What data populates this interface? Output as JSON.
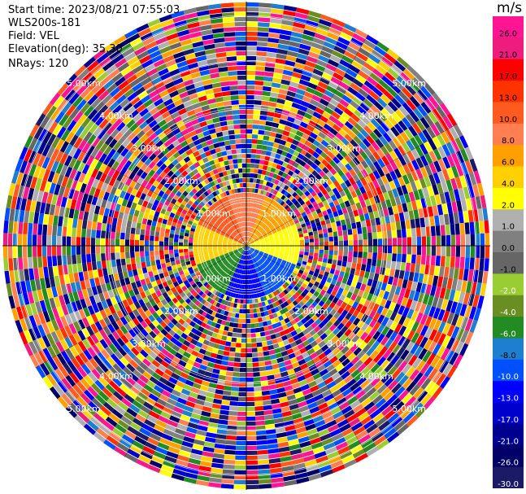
{
  "header": {
    "start_time": "Start time: 2023/08/21 07:55:03",
    "instrument": "WLS200s-181",
    "field": "Field: VEL",
    "elevation": "Elevation(deg): 35.30",
    "nrays": "NRays: 120"
  },
  "colorbar": {
    "unit": "m/s",
    "ticks": [
      "26.0",
      "21.0",
      "17.0",
      "13.0",
      "10.0",
      "8.0",
      "6.0",
      "4.0",
      "2.0",
      "1.0",
      "0.0",
      "-1.0",
      "-2.0",
      "-4.0",
      "-6.0",
      "-8.0",
      "-10.0",
      "-13.0",
      "-17.0",
      "-21.0",
      "-26.0",
      "-30.0"
    ],
    "colors": [
      "#ff1493",
      "#ee1c7c",
      "#ff0000",
      "#ff3300",
      "#ff5a1f",
      "#ff7f50",
      "#ffa000",
      "#ffd000",
      "#ffff00",
      "#b0b0b0",
      "#808080",
      "#666666",
      "#9acd32",
      "#6b8e23",
      "#228b22",
      "#1e7fd0",
      "#0050ff",
      "#0000ff",
      "#0000cd",
      "#000090",
      "#000066",
      "#1a1a66"
    ]
  },
  "range_labels": [
    "1.00km",
    "2.00km",
    "3.00km",
    "4.00km",
    "5.00km"
  ],
  "chart_data": {
    "type": "heatmap",
    "title": "",
    "projection": "polar PPI",
    "field": "VEL",
    "unit": "m/s",
    "nrays": 120,
    "elevation_deg": 35.3,
    "range_rings_km": [
      1,
      2,
      3,
      4,
      5
    ],
    "colorscale_levels": [
      26.0,
      21.0,
      17.0,
      13.0,
      10.0,
      8.0,
      6.0,
      4.0,
      2.0,
      1.0,
      0.0,
      -1.0,
      -2.0,
      -4.0,
      -6.0,
      -8.0,
      -10.0,
      -13.0,
      -17.0,
      -21.0,
      -26.0,
      -30.0
    ],
    "near_field_velocity_by_sector": [
      {
        "sector": "N",
        "value": 8.0
      },
      {
        "sector": "NE",
        "value": 6.0
      },
      {
        "sector": "E",
        "value": 2.0
      },
      {
        "sector": "SE",
        "value": -10.0
      },
      {
        "sector": "S",
        "value": -13.0
      },
      {
        "sector": "SW",
        "value": -6.0
      },
      {
        "sector": "W",
        "value": 4.0
      },
      {
        "sector": "NW",
        "value": 10.0
      }
    ]
  }
}
